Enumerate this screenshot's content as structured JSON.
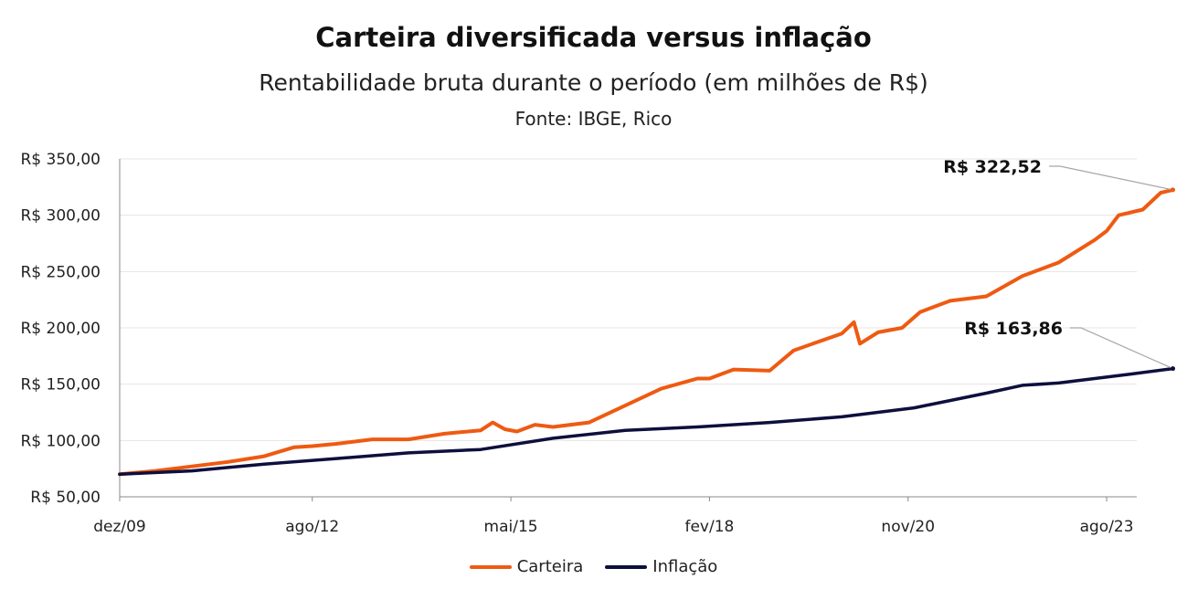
{
  "chart_data": {
    "type": "line",
    "title": "Carteira diversificada versus inflação",
    "subtitle": "Rentabilidade bruta durante o período (em milhões de R$)",
    "source": "Fonte: IBGE, Rico",
    "x_tick_labels": [
      "dez/09",
      "ago/12",
      "mai/15",
      "fev/18",
      "nov/20",
      "ago/23"
    ],
    "y_tick_labels": [
      "R$ 50,00",
      "R$ 100,00",
      "R$ 150,00",
      "R$ 200,00",
      "R$ 250,00",
      "R$ 300,00",
      "R$ 350,00"
    ],
    "ylim": [
      50,
      350
    ],
    "x_range": [
      "dez/09",
      "jan/24"
    ],
    "grid": true,
    "legend_position": "bottom",
    "series": [
      {
        "name": "Carteira",
        "color": "#ee5a12",
        "points": [
          [
            "dez/09",
            70
          ],
          [
            "jun/10",
            73
          ],
          [
            "dez/10",
            77
          ],
          [
            "jun/11",
            81
          ],
          [
            "dez/11",
            86
          ],
          [
            "mai/12",
            94
          ],
          [
            "ago/12",
            95
          ],
          [
            "dez/12",
            97
          ],
          [
            "jun/13",
            101
          ],
          [
            "dez/13",
            101
          ],
          [
            "jun/14",
            106
          ],
          [
            "dez/14",
            109
          ],
          [
            "fev/15",
            116
          ],
          [
            "abr/15",
            110
          ],
          [
            "jun/15",
            108
          ],
          [
            "set/15",
            114
          ],
          [
            "dez/15",
            112
          ],
          [
            "jun/16",
            116
          ],
          [
            "dez/16",
            131
          ],
          [
            "jun/17",
            146
          ],
          [
            "dez/17",
            155
          ],
          [
            "fev/18",
            155
          ],
          [
            "jun/18",
            163
          ],
          [
            "dez/18",
            162
          ],
          [
            "abr/19",
            180
          ],
          [
            "dez/19",
            195
          ],
          [
            "fev/20",
            205
          ],
          [
            "mar/20",
            186
          ],
          [
            "jun/20",
            196
          ],
          [
            "out/20",
            200
          ],
          [
            "jan/21",
            214
          ],
          [
            "jun/21",
            224
          ],
          [
            "dez/21",
            228
          ],
          [
            "jun/22",
            246
          ],
          [
            "dez/22",
            258
          ],
          [
            "jun/23",
            278
          ],
          [
            "ago/23",
            286
          ],
          [
            "out/23",
            300
          ],
          [
            "fev/24",
            305
          ],
          [
            "mai/24",
            320
          ],
          [
            "jul/24",
            322.52
          ]
        ],
        "end_label": "R$ 322,52"
      },
      {
        "name": "Inflação",
        "color": "#0d0f3d",
        "points": [
          [
            "dez/09",
            70
          ],
          [
            "dez/10",
            73
          ],
          [
            "dez/11",
            79
          ],
          [
            "dez/12",
            84
          ],
          [
            "dez/13",
            89
          ],
          [
            "dez/14",
            92
          ],
          [
            "dez/15",
            102
          ],
          [
            "dez/16",
            109
          ],
          [
            "dez/17",
            112
          ],
          [
            "dez/18",
            116
          ],
          [
            "dez/19",
            121
          ],
          [
            "dez/20",
            129
          ],
          [
            "dez/21",
            142
          ],
          [
            "jun/22",
            149
          ],
          [
            "dez/22",
            151
          ],
          [
            "jun/23",
            155
          ],
          [
            "dez/23",
            159
          ],
          [
            "jul/24",
            163.86
          ]
        ],
        "end_label": "R$ 163,86"
      }
    ]
  }
}
